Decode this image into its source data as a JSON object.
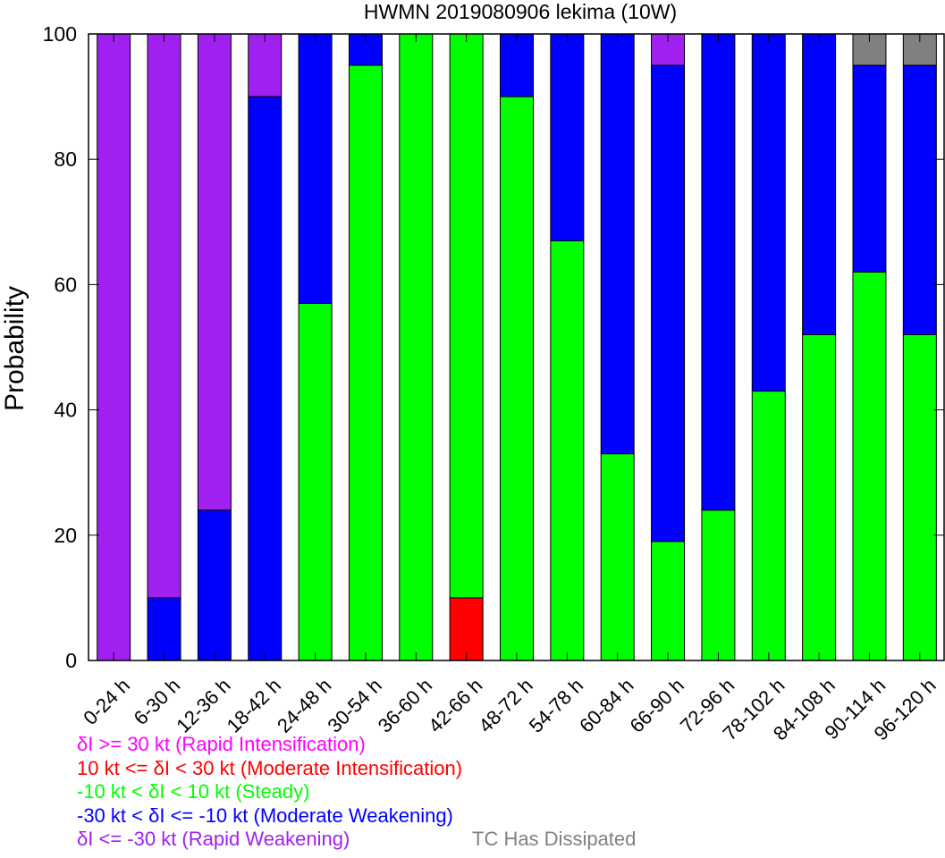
{
  "chart_data": {
    "type": "bar",
    "stacked": true,
    "title": "HWMN 2019080906 lekima (10W)",
    "xlabel": "",
    "ylabel": "Probability",
    "ylim": [
      0,
      100
    ],
    "yticks": [
      0,
      20,
      40,
      60,
      80,
      100
    ],
    "grid": false,
    "categories": [
      "0-24 h",
      "6-30 h",
      "12-36 h",
      "18-42 h",
      "24-48 h",
      "30-54 h",
      "36-60 h",
      "42-66 h",
      "48-72 h",
      "54-78 h",
      "60-84 h",
      "66-90 h",
      "72-96 h",
      "78-102 h",
      "84-108 h",
      "90-114 h",
      "96-120 h"
    ],
    "series": [
      {
        "name": "δI >= 30 kt (Rapid Intensification)",
        "color": "#ff00ff",
        "values": [
          0,
          0,
          0,
          0,
          0,
          0,
          0,
          0,
          0,
          0,
          0,
          0,
          0,
          0,
          0,
          0,
          0
        ]
      },
      {
        "name": "10 kt <= δI < 30 kt (Moderate Intensification)",
        "color": "#ff0000",
        "values": [
          0,
          0,
          0,
          0,
          0,
          0,
          0,
          10,
          0,
          0,
          0,
          0,
          0,
          0,
          0,
          0,
          0
        ]
      },
      {
        "name": "-10 kt < δI < 10 kt (Steady)",
        "color": "#00ff00",
        "values": [
          0,
          0,
          0,
          0,
          57,
          95,
          100,
          90,
          90,
          67,
          33,
          19,
          24,
          43,
          52,
          62,
          52
        ]
      },
      {
        "name": "-30 kt < δI <= -10 kt (Moderate Weakening)",
        "color": "#0000ff",
        "values": [
          0,
          10,
          24,
          90,
          43,
          5,
          0,
          0,
          10,
          33,
          67,
          76,
          76,
          57,
          48,
          33,
          43
        ]
      },
      {
        "name": "δI <= -30 kt (Rapid Weakening)",
        "color": "#a020f0",
        "values": [
          100,
          90,
          76,
          10,
          0,
          0,
          0,
          0,
          0,
          0,
          0,
          5,
          0,
          0,
          0,
          0,
          0
        ]
      },
      {
        "name": "TC Has Dissipated",
        "color": "#808080",
        "values": [
          0,
          0,
          0,
          0,
          0,
          0,
          0,
          0,
          0,
          0,
          0,
          0,
          0,
          0,
          0,
          5,
          5
        ]
      }
    ],
    "stack_order": [
      1,
      2,
      3,
      4,
      0,
      5
    ]
  }
}
